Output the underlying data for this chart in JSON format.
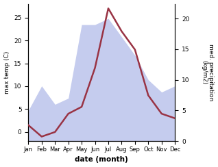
{
  "months": [
    "Jan",
    "Feb",
    "Mar",
    "Apr",
    "May",
    "Jun",
    "Jul",
    "Aug",
    "Sep",
    "Oct",
    "Nov",
    "Dec"
  ],
  "month_x": [
    1,
    2,
    3,
    4,
    5,
    6,
    7,
    8,
    9,
    10,
    11,
    12
  ],
  "temp": [
    1.5,
    -1.0,
    0.0,
    4.0,
    5.5,
    14.0,
    27.0,
    22.0,
    18.0,
    8.0,
    4.0,
    3.0
  ],
  "precip": [
    5.0,
    9.0,
    6.0,
    7.0,
    19.0,
    19.0,
    20.0,
    17.0,
    14.0,
    10.0,
    8.0,
    9.0
  ],
  "temp_color": "#993344",
  "precip_fill_color": "#c5ccee",
  "ylabel_left": "max temp (C)",
  "ylabel_right": "med. precipitation\n(kg/m2)",
  "xlabel": "date (month)",
  "ylim_left": [
    -2,
    28
  ],
  "ylim_right": [
    0,
    22.4
  ],
  "yticks_left": [
    0,
    5,
    10,
    15,
    20,
    25
  ],
  "yticks_right": [
    0,
    5,
    10,
    15,
    20
  ],
  "line_width": 1.8,
  "figsize": [
    3.18,
    2.44
  ],
  "dpi": 100
}
